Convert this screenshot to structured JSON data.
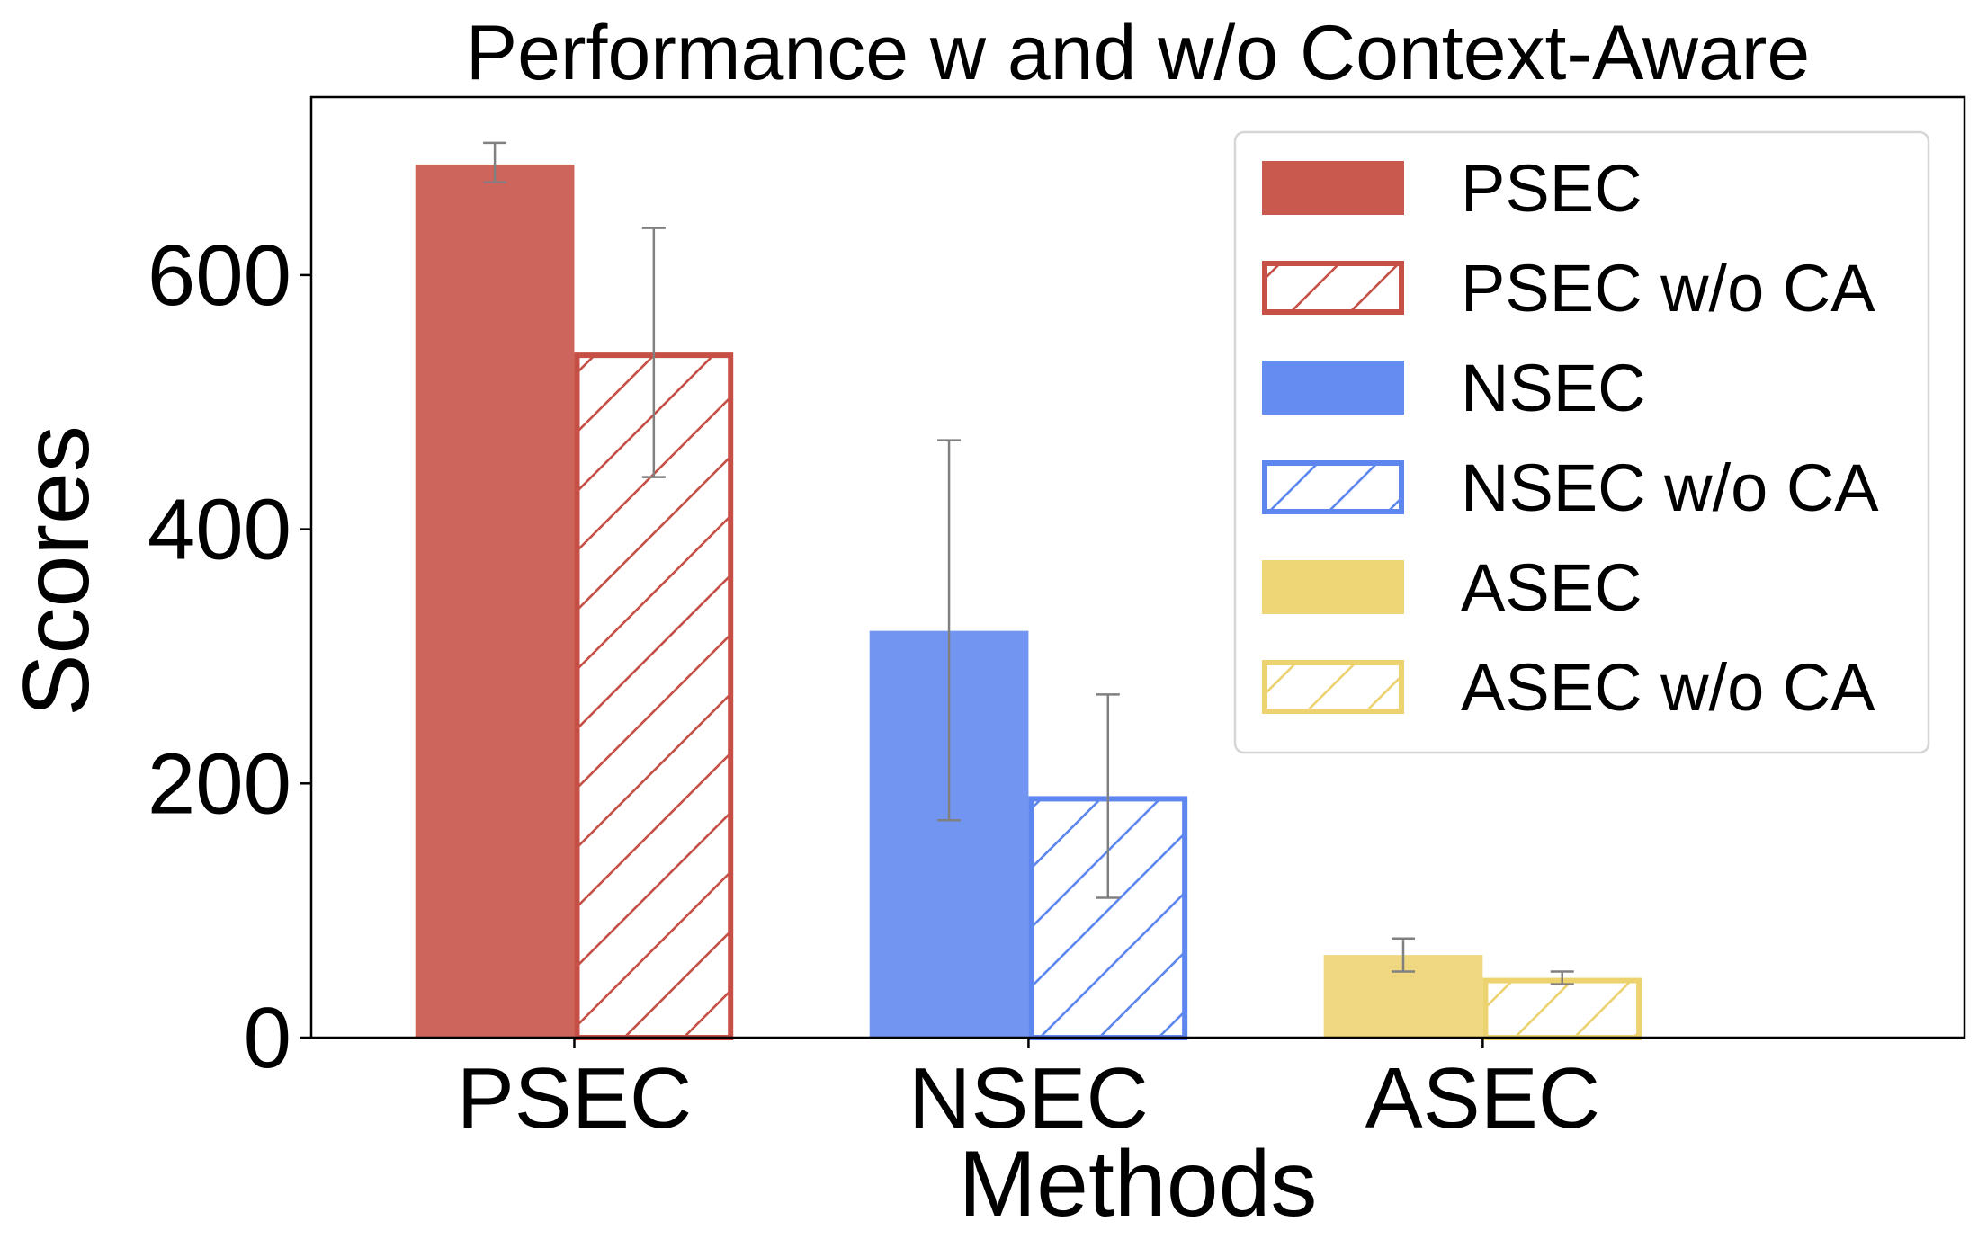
{
  "chart_data": {
    "type": "bar",
    "title": "Performance w and w/o Context-Aware",
    "xlabel": "Methods",
    "ylabel": "Scores",
    "ylim": [
      0,
      740
    ],
    "yticks": [
      0,
      200,
      400,
      600
    ],
    "categories": [
      "PSEC",
      "NSEC",
      "ASEC"
    ],
    "grid": false,
    "legend_position": "top-right",
    "series": [
      {
        "name": "PSEC",
        "category": "PSEC",
        "value": 687,
        "err_low": 673,
        "err_high": 704,
        "color": "#c65045",
        "hatched": false
      },
      {
        "name": "PSEC w/o CA",
        "category": "PSEC",
        "value": 539,
        "err_low": 441,
        "err_high": 637,
        "color": "#c65045",
        "hatched": true
      },
      {
        "name": "NSEC",
        "category": "NSEC",
        "value": 320,
        "err_low": 171,
        "err_high": 470,
        "color": "#5d86ef",
        "hatched": false
      },
      {
        "name": "NSEC w/o CA",
        "category": "NSEC",
        "value": 190,
        "err_low": 110,
        "err_high": 270,
        "color": "#5d86ef",
        "hatched": true
      },
      {
        "name": "ASEC",
        "category": "ASEC",
        "value": 65,
        "err_low": 52,
        "err_high": 78,
        "color": "#edd36f",
        "hatched": false
      },
      {
        "name": "ASEC w/o CA",
        "category": "ASEC",
        "value": 47,
        "err_low": 42,
        "err_high": 52,
        "color": "#edd36f",
        "hatched": true
      }
    ],
    "error_bar_color": "#808080"
  }
}
